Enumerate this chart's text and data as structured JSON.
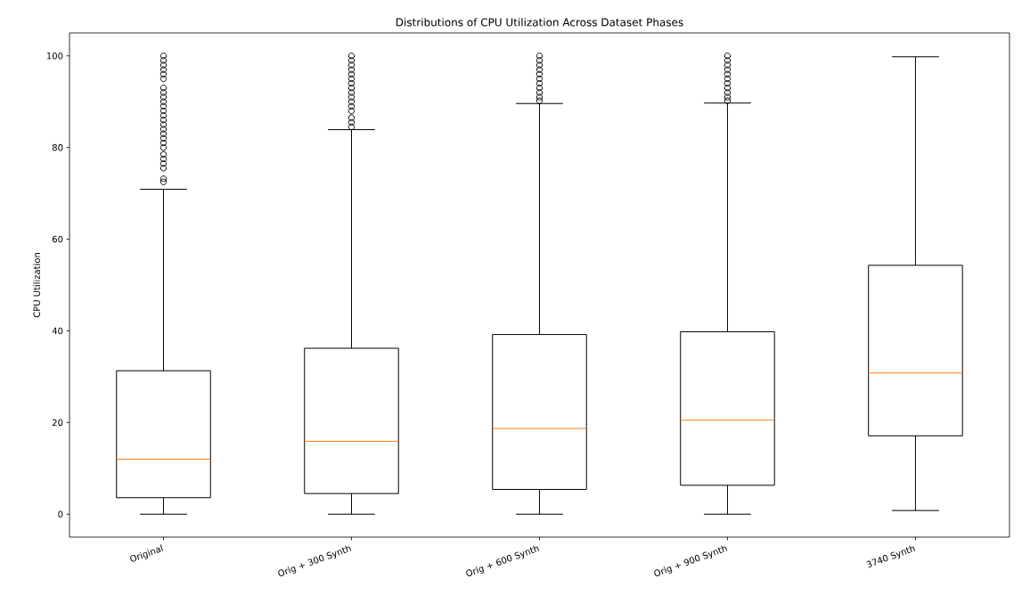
{
  "chart_data": {
    "type": "box",
    "title": "Distributions of CPU Utilization Across Dataset Phases",
    "ylabel": "CPU Utilization",
    "categories": [
      "Original",
      "Orig + 300 Synth",
      "Orig + 600 Synth",
      "Orig + 900 Synth",
      "3740 Synth"
    ],
    "boxes": [
      {
        "low": 0,
        "q1": 3.6,
        "median": 12.0,
        "q3": 31.3,
        "high": 70.9,
        "outliers": [
          72.5,
          73.2,
          75.5,
          76.5,
          77.5,
          78.5,
          80,
          81,
          82,
          83,
          84,
          85,
          86,
          87,
          88,
          89,
          90,
          91,
          92,
          93,
          95,
          96,
          97,
          98,
          99,
          100
        ]
      },
      {
        "low": 0,
        "q1": 4.5,
        "median": 15.9,
        "q3": 36.2,
        "high": 83.9,
        "outliers": [
          84.5,
          85.5,
          86.5,
          88,
          89,
          90,
          91,
          92,
          93,
          94,
          95,
          96,
          97,
          98,
          99,
          100
        ]
      },
      {
        "low": 0,
        "q1": 5.4,
        "median": 18.7,
        "q3": 39.2,
        "high": 89.6,
        "outliers": [
          90.2,
          91,
          92,
          93,
          94,
          95,
          96,
          97,
          98,
          99,
          100
        ]
      },
      {
        "low": 0,
        "q1": 6.3,
        "median": 20.5,
        "q3": 39.8,
        "high": 89.7,
        "outliers": [
          90.2,
          91,
          92,
          93,
          94,
          95,
          96,
          97,
          98,
          99,
          100
        ]
      },
      {
        "low": 0.8,
        "q1": 17.1,
        "median": 30.8,
        "q3": 54.3,
        "high": 99.8
      }
    ],
    "ylim": [
      -5,
      105
    ],
    "yticks": [
      0,
      20,
      40,
      60,
      80,
      100
    ],
    "marker": "circle"
  }
}
